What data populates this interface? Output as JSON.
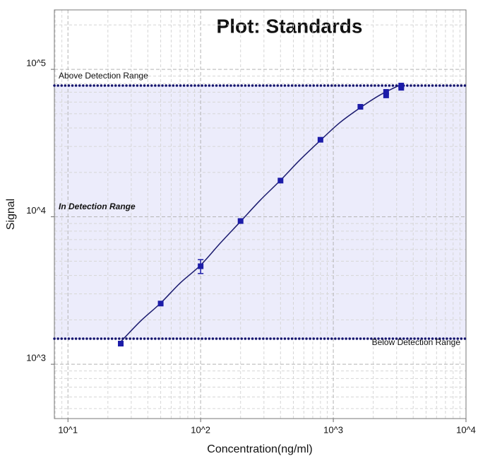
{
  "chart_data": {
    "type": "scatter",
    "title": "Plot: Standards",
    "xlabel": "Concentration(ng/ml)",
    "ylabel": "Signal",
    "xscale": "log",
    "yscale": "log",
    "xlim": [
      7.9,
      10000
    ],
    "ylim": [
      428,
      253000
    ],
    "xticks": [
      {
        "value": 10,
        "label": "10^1"
      },
      {
        "value": 100,
        "label": "10^2"
      },
      {
        "value": 1000,
        "label": "10^3"
      },
      {
        "value": 10000,
        "label": "10^4"
      }
    ],
    "yticks": [
      {
        "value": 1000,
        "label": "10^3"
      },
      {
        "value": 10000,
        "label": "10^4"
      },
      {
        "value": 100000,
        "label": "10^5"
      }
    ],
    "grid": true,
    "series": [
      {
        "color": "#1c1ca8",
        "x": [
          25,
          50,
          100,
          200,
          400,
          800,
          1600,
          2500,
          2500,
          3250,
          3250
        ],
        "values": [
          1380,
          2580,
          4620,
          9360,
          17600,
          33300,
          55700,
          70300,
          66600,
          77600,
          75000
        ],
        "errors": [
          null,
          null,
          500,
          null,
          null,
          null,
          null,
          null,
          null,
          null,
          null
        ]
      }
    ],
    "fit": {
      "color": "#1a1a6e",
      "x": [
        25,
        35,
        50,
        70,
        100,
        140,
        200,
        280,
        400,
        560,
        800,
        1120,
        1600,
        2250,
        3250
      ],
      "values": [
        1420,
        1950,
        2600,
        3550,
        4700,
        6600,
        9300,
        12900,
        17700,
        24300,
        33000,
        43500,
        55000,
        67000,
        79000
      ]
    },
    "detection": {
      "upper": 77600,
      "lower": 1490,
      "line_color": "#14146e",
      "band_color": "#ececfb",
      "above_label": "Above Detection Range",
      "in_label": "In Detection Range",
      "below_label": "Below Detection Range"
    }
  }
}
